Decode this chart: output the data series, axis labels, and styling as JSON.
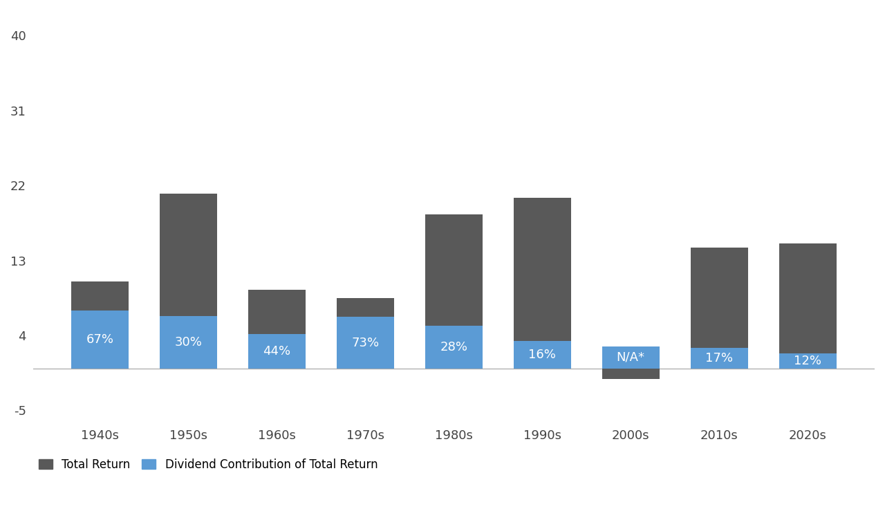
{
  "categories": [
    "1940s",
    "1950s",
    "1960s",
    "1970s",
    "1980s",
    "1990s",
    "2000s",
    "2010s",
    "2020s"
  ],
  "total_return": [
    10.5,
    21.0,
    9.5,
    8.5,
    18.5,
    20.5,
    -1.2,
    14.5,
    15.0
  ],
  "dividend_return": [
    7.0,
    6.3,
    4.2,
    6.2,
    5.2,
    3.3,
    2.7,
    2.5,
    1.8
  ],
  "pct_labels": [
    "67%",
    "30%",
    "44%",
    "73%",
    "28%",
    "16%",
    "N/A*",
    "17%",
    "12%"
  ],
  "total_color": "#595959",
  "dividend_color": "#5b9bd5",
  "yticks": [
    -5,
    4,
    13,
    22,
    31,
    40
  ],
  "ylim": [
    -6.5,
    43
  ],
  "legend_total": "Total Return",
  "legend_dividend": "Dividend Contribution of Total Return",
  "bar_width": 0.65,
  "label_fontsize": 13,
  "tick_fontsize": 13,
  "legend_fontsize": 12,
  "background_color": "#ffffff"
}
